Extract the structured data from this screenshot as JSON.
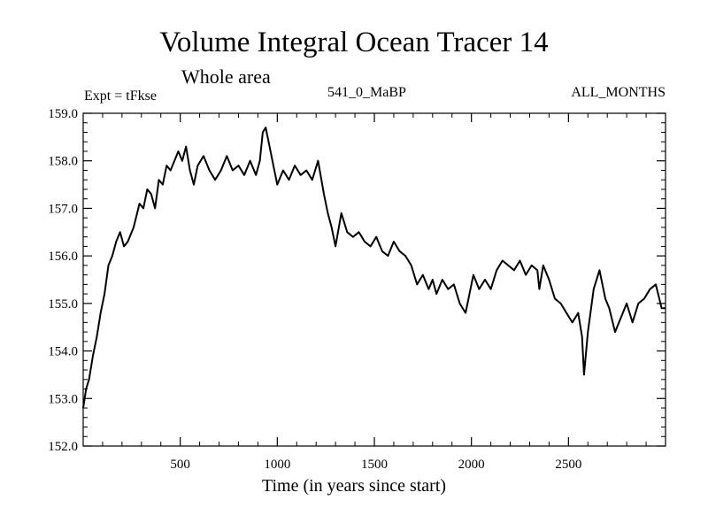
{
  "chart_data": {
    "type": "line",
    "title": "Volume Integral Ocean Tracer 14",
    "subtitle": "Whole area",
    "annotations": {
      "left": "Expt = tFkse",
      "center": "541_0_MaBP",
      "right": "ALL_MONTHS"
    },
    "xlabel": "Time (in years since start)",
    "ylabel": "",
    "xlim": [
      0,
      3000
    ],
    "ylim": [
      152.0,
      159.0
    ],
    "xticks": [
      500,
      1000,
      1500,
      2000,
      2500
    ],
    "xtick_labels": [
      "500",
      "1000",
      "1500",
      "2000",
      "2500"
    ],
    "yticks": [
      152.0,
      153.0,
      154.0,
      155.0,
      156.0,
      157.0,
      158.0,
      159.0
    ],
    "ytick_labels": [
      "152.0",
      "153.0",
      "154.0",
      "155.0",
      "156.0",
      "157.0",
      "158.0",
      "159.0"
    ],
    "grid": false,
    "series": [
      {
        "name": "Volume Integral Ocean Tracer 14",
        "color": "#000000",
        "x": [
          0,
          15,
          30,
          50,
          70,
          90,
          110,
          130,
          150,
          170,
          190,
          210,
          230,
          260,
          290,
          310,
          330,
          350,
          370,
          390,
          410,
          430,
          450,
          470,
          490,
          510,
          530,
          550,
          570,
          590,
          620,
          650,
          680,
          710,
          740,
          770,
          800,
          830,
          860,
          890,
          910,
          925,
          940,
          960,
          980,
          1000,
          1030,
          1060,
          1090,
          1120,
          1150,
          1180,
          1210,
          1240,
          1260,
          1280,
          1300,
          1330,
          1360,
          1390,
          1420,
          1450,
          1480,
          1510,
          1540,
          1570,
          1600,
          1630,
          1660,
          1690,
          1720,
          1750,
          1780,
          1800,
          1820,
          1850,
          1880,
          1910,
          1940,
          1970,
          1990,
          2010,
          2040,
          2070,
          2100,
          2130,
          2160,
          2190,
          2220,
          2250,
          2280,
          2310,
          2340,
          2350,
          2370,
          2400,
          2430,
          2460,
          2490,
          2520,
          2550,
          2570,
          2580,
          2600,
          2630,
          2660,
          2690,
          2710,
          2740,
          2770,
          2800,
          2830,
          2860,
          2890,
          2920,
          2950,
          2980,
          3000
        ],
        "y": [
          152.8,
          153.2,
          153.4,
          153.9,
          154.3,
          154.8,
          155.2,
          155.8,
          156.0,
          156.3,
          156.5,
          156.2,
          156.3,
          156.6,
          157.1,
          157.0,
          157.4,
          157.3,
          157.0,
          157.6,
          157.5,
          157.9,
          157.8,
          158.0,
          158.2,
          158.0,
          158.3,
          157.8,
          157.5,
          157.9,
          158.1,
          157.8,
          157.6,
          157.8,
          158.1,
          157.8,
          157.9,
          157.7,
          158.0,
          157.7,
          158.0,
          158.6,
          158.7,
          158.3,
          157.9,
          157.5,
          157.8,
          157.6,
          157.9,
          157.7,
          157.8,
          157.6,
          158.0,
          157.3,
          156.9,
          156.6,
          156.2,
          156.9,
          156.5,
          156.4,
          156.5,
          156.3,
          156.2,
          156.4,
          156.1,
          156.0,
          156.3,
          156.1,
          156.0,
          155.8,
          155.4,
          155.6,
          155.3,
          155.5,
          155.2,
          155.5,
          155.3,
          155.4,
          155.0,
          154.8,
          155.2,
          155.6,
          155.3,
          155.5,
          155.3,
          155.7,
          155.9,
          155.8,
          155.7,
          155.9,
          155.6,
          155.8,
          155.7,
          155.3,
          155.8,
          155.5,
          155.1,
          155.0,
          154.8,
          154.6,
          154.8,
          154.3,
          153.5,
          154.4,
          155.3,
          155.7,
          155.1,
          154.9,
          154.4,
          154.7,
          155.0,
          154.6,
          155.0,
          155.1,
          155.3,
          155.4,
          154.9,
          154.9
        ]
      }
    ]
  }
}
